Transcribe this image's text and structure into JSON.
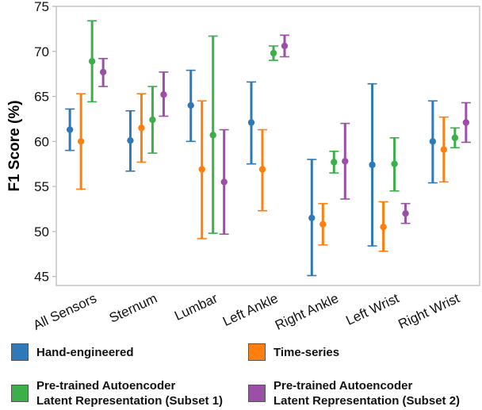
{
  "chart_data": {
    "type": "scatter",
    "subtype": "point-with-error-bars",
    "title": "",
    "xlabel": "",
    "ylabel": "F1 Score (%)",
    "ylim": [
      44,
      75
    ],
    "yticks": [
      45,
      50,
      55,
      60,
      65,
      70,
      75
    ],
    "grid": false,
    "legend_position": "bottom",
    "categories": [
      "All Sensors",
      "Sternum",
      "Lumbar",
      "Left Ankle",
      "Right Ankle",
      "Left Wrist",
      "Right Wrist"
    ],
    "series": [
      {
        "name": "Hand-engineered",
        "color": "#2e7ab8",
        "values": [
          61.3,
          60.1,
          64.0,
          62.1,
          51.5,
          57.4,
          60.0
        ],
        "lower": [
          59.0,
          56.7,
          60.0,
          57.5,
          45.1,
          48.4,
          55.4
        ],
        "upper": [
          63.6,
          63.4,
          67.9,
          66.6,
          58.0,
          66.4,
          64.5
        ]
      },
      {
        "name": "Time-series",
        "color": "#ff7f0e",
        "values": [
          60.0,
          61.5,
          56.9,
          56.9,
          50.8,
          50.5,
          59.1
        ],
        "lower": [
          54.7,
          57.7,
          49.2,
          52.3,
          48.5,
          47.8,
          55.5
        ],
        "upper": [
          65.3,
          65.3,
          64.5,
          61.3,
          53.1,
          53.3,
          62.7
        ]
      },
      {
        "name": "Pre-trained Autoencoder\nLatent Representation (Subset 1)",
        "color": "#3cae4a",
        "values": [
          68.9,
          62.4,
          60.7,
          69.8,
          57.7,
          57.5,
          60.4
        ],
        "lower": [
          64.4,
          58.7,
          49.8,
          69.0,
          56.5,
          54.5,
          59.3
        ],
        "upper": [
          73.4,
          66.1,
          71.7,
          70.6,
          58.9,
          60.4,
          61.5
        ]
      },
      {
        "name": "Pre-trained Autoencoder\nLatent Representation (Subset 2)",
        "color": "#9b4fa6",
        "values": [
          67.7,
          65.2,
          55.5,
          70.6,
          57.8,
          52.0,
          62.1
        ],
        "lower": [
          66.1,
          62.8,
          49.7,
          69.4,
          53.6,
          50.9,
          59.9
        ],
        "upper": [
          69.2,
          67.7,
          61.3,
          71.8,
          62.0,
          53.1,
          64.3
        ]
      }
    ]
  }
}
